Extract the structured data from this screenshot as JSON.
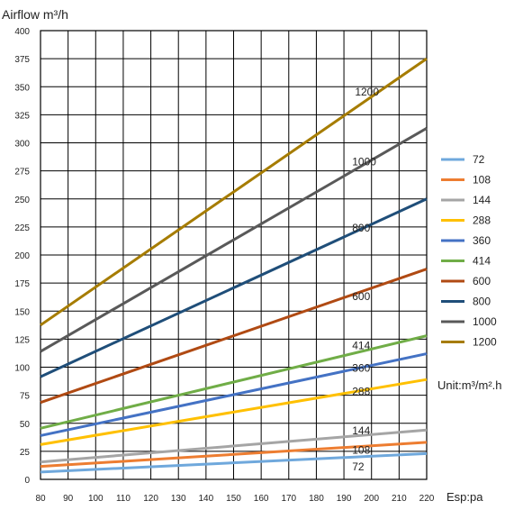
{
  "chart_data": {
    "type": "line",
    "title": "",
    "ylabel": "Airflow m³/h",
    "xlabel": "Esp:pa",
    "unit_label": "Unit:m³/m².h",
    "xlim": [
      80,
      220
    ],
    "ylim": [
      0,
      400
    ],
    "xticks": [
      80,
      90,
      100,
      110,
      120,
      130,
      140,
      150,
      160,
      170,
      180,
      190,
      200,
      210,
      220
    ],
    "yticks": [
      0,
      25,
      50,
      75,
      100,
      125,
      150,
      175,
      200,
      225,
      250,
      275,
      300,
      325,
      350,
      375,
      400
    ],
    "grid": true,
    "legend_position": "right",
    "series": [
      {
        "name": "72",
        "color": "#6fa8dc",
        "x": [
          80,
          220
        ],
        "y": [
          6.5,
          23
        ],
        "label": "72"
      },
      {
        "name": "108",
        "color": "#ed7d31",
        "x": [
          80,
          220
        ],
        "y": [
          11.5,
          33
        ],
        "label": "108"
      },
      {
        "name": "144",
        "color": "#a5a5a5",
        "x": [
          80,
          220
        ],
        "y": [
          15.5,
          44
        ],
        "label": "144"
      },
      {
        "name": "288",
        "color": "#ffc000",
        "x": [
          80,
          220
        ],
        "y": [
          31,
          89
        ],
        "label": "288"
      },
      {
        "name": "360",
        "color": "#4472c4",
        "x": [
          80,
          220
        ],
        "y": [
          39,
          112
        ],
        "label": "360"
      },
      {
        "name": "414",
        "color": "#70ad47",
        "x": [
          80,
          220
        ],
        "y": [
          45.5,
          128
        ],
        "label": "414"
      },
      {
        "name": "600",
        "color": "#b04a13",
        "x": [
          80,
          220
        ],
        "y": [
          68.5,
          187.5
        ],
        "label": "600"
      },
      {
        "name": "800",
        "color": "#1f4e79",
        "x": [
          80,
          220
        ],
        "y": [
          91.5,
          250
        ],
        "label": "800"
      },
      {
        "name": "1000",
        "color": "#595959",
        "x": [
          80,
          220
        ],
        "y": [
          114,
          313
        ],
        "label": "1000"
      },
      {
        "name": "1200",
        "color": "#a67c00",
        "x": [
          80,
          220
        ],
        "y": [
          137.5,
          375
        ],
        "label": "1200"
      }
    ],
    "annotations": [
      {
        "text": "1200",
        "x": 194,
        "y": 342
      },
      {
        "text": "1000",
        "x": 193,
        "y": 280
      },
      {
        "text": "800",
        "x": 193,
        "y": 221
      },
      {
        "text": "600",
        "x": 193,
        "y": 160
      },
      {
        "text": "414",
        "x": 193,
        "y": 116
      },
      {
        "text": "360",
        "x": 193,
        "y": 96
      },
      {
        "text": "288",
        "x": 193,
        "y": 75
      },
      {
        "text": "144",
        "x": 193,
        "y": 40
      },
      {
        "text": "108",
        "x": 193,
        "y": 23
      },
      {
        "text": "72",
        "x": 193,
        "y": 8
      }
    ]
  }
}
